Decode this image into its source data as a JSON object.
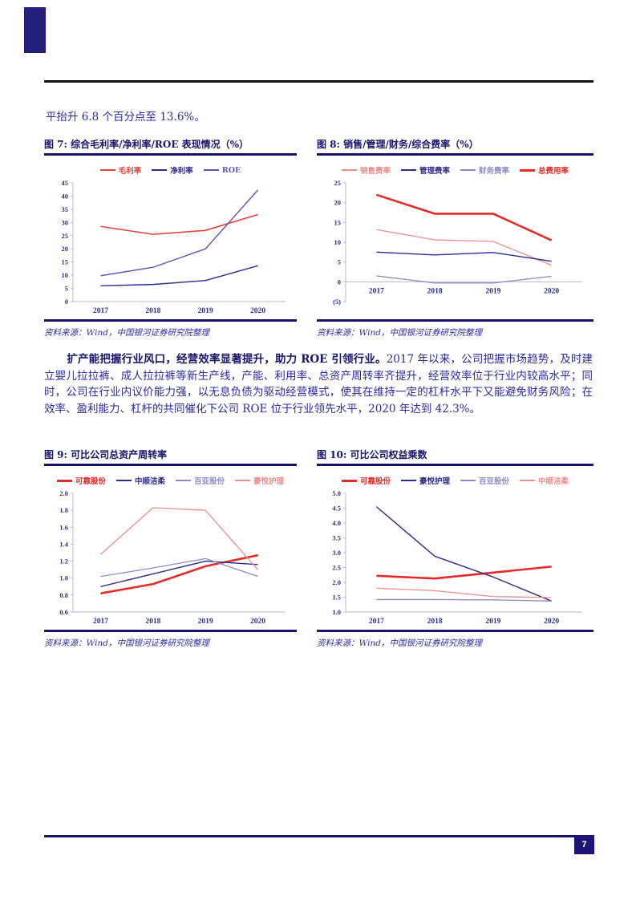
{
  "texts": {
    "intro": "平抬升 6.8 个百分点至 13.6%。",
    "para_bold": "扩产能把握行业风口，经营效率显著提升，助力 ROE 引领行业。",
    "para_rest": "2017 年以来，公司把握市场趋势，及时建立婴儿拉拉裤、成人拉拉裤等新生产线，产能、利用率、总资产周转率齐提升，经营效率位于行业内较高水平；同时，公司在行业内议价能力强，以无息负债为驱动经营模式，使其在维持一定的杠杆水平下又能避免财务风险；在效率、盈利能力、杠杆的共同催化下公司 ROE 位于行业领先水平，2020 年达到 42.3%。",
    "source": "资料来源：Wind，中国银河证券研究院整理",
    "page_number": "7"
  },
  "theme": {
    "navy": "#17126b",
    "body_blue": "#2c28a4",
    "bold_red": "#e52b28",
    "footer_box": "#1d1478"
  },
  "chart_data": [
    {
      "type": "line",
      "title": "图 7: 综合毛利率/净利率/ROE 表现情况（%）",
      "categories": [
        "2017",
        "2018",
        "2019",
        "2020"
      ],
      "ylim": [
        0,
        45
      ],
      "xaxis_at": 0,
      "yticks": [
        {
          "v": 0,
          "label": "0"
        },
        {
          "v": 5,
          "label": "5"
        },
        {
          "v": 10,
          "label": "10"
        },
        {
          "v": 15,
          "label": "15"
        },
        {
          "v": 20,
          "label": "20"
        },
        {
          "v": 25,
          "label": "25"
        },
        {
          "v": 30,
          "label": "30"
        },
        {
          "v": 35,
          "label": "35"
        },
        {
          "v": 40,
          "label": "40"
        },
        {
          "v": 45,
          "label": "45"
        }
      ],
      "series": [
        {
          "name": "毛利率",
          "color": "#e6403a",
          "width": 1.6,
          "values": [
            28.5,
            25.5,
            27.0,
            33.0
          ]
        },
        {
          "name": "净利率",
          "color": "#2e2b8f",
          "width": 1.4,
          "values": [
            6.0,
            6.5,
            8.0,
            13.6
          ]
        },
        {
          "name": "ROE",
          "color": "#5a55b5",
          "width": 1.4,
          "values": [
            9.8,
            13.0,
            20.0,
            42.3
          ]
        }
      ],
      "legend_position": "top",
      "grid": false
    },
    {
      "type": "line",
      "title": "图 8: 销售/管理/财务/综合费率（%）",
      "categories": [
        "2017",
        "2018",
        "2019",
        "2020"
      ],
      "ylim": [
        -5,
        25
      ],
      "xaxis_at": 0,
      "yticks": [
        {
          "v": -5,
          "label": "(5)"
        },
        {
          "v": 0,
          "label": "0"
        },
        {
          "v": 5,
          "label": "5"
        },
        {
          "v": 10,
          "label": "10"
        },
        {
          "v": 15,
          "label": "15"
        },
        {
          "v": 20,
          "label": "20"
        },
        {
          "v": 25,
          "label": "25"
        }
      ],
      "series": [
        {
          "name": "销售费率",
          "color": "#ef8c8c",
          "width": 1.3,
          "values": [
            13.2,
            10.6,
            10.2,
            4.2
          ]
        },
        {
          "name": "管理费率",
          "color": "#2e2b8f",
          "width": 1.4,
          "values": [
            7.5,
            6.8,
            7.4,
            5.2
          ]
        },
        {
          "name": "财务费率",
          "color": "#8d89c6",
          "width": 1.3,
          "values": [
            1.5,
            -0.3,
            -0.3,
            1.4
          ]
        },
        {
          "name": "总费用率",
          "color": "#e52b28",
          "width": 2.6,
          "values": [
            22.0,
            17.2,
            17.2,
            10.5
          ]
        }
      ],
      "legend_position": "top",
      "grid": false
    },
    {
      "type": "line",
      "title": "图 9: 可比公司总资产周转率",
      "categories": [
        "2017",
        "2018",
        "2019",
        "2020"
      ],
      "ylim": [
        0.6,
        2.0
      ],
      "xaxis_at": 0.6,
      "yticks": [
        {
          "v": 0.6,
          "label": "0.6"
        },
        {
          "v": 0.8,
          "label": "0.8"
        },
        {
          "v": 1.0,
          "label": "1.0"
        },
        {
          "v": 1.2,
          "label": "1.2"
        },
        {
          "v": 1.4,
          "label": "1.4"
        },
        {
          "v": 1.6,
          "label": "1.6"
        },
        {
          "v": 1.8,
          "label": "1.8"
        },
        {
          "v": 2.0,
          "label": "2.0"
        }
      ],
      "series": [
        {
          "name": "可靠股份",
          "color": "#e52b28",
          "width": 2.6,
          "values": [
            0.82,
            0.93,
            1.14,
            1.27
          ]
        },
        {
          "name": "中顺洁柔",
          "color": "#2e2b8f",
          "width": 1.4,
          "values": [
            0.9,
            1.05,
            1.2,
            1.16
          ]
        },
        {
          "name": "百亚股份",
          "color": "#8d89c6",
          "width": 1.3,
          "values": [
            1.02,
            1.12,
            1.23,
            1.02
          ]
        },
        {
          "name": "豪悦护理",
          "color": "#ef8c8c",
          "width": 1.3,
          "values": [
            1.28,
            1.83,
            1.8,
            1.1
          ]
        }
      ],
      "legend_position": "top",
      "grid": false
    },
    {
      "type": "line",
      "title": "图 10: 可比公司权益乘数",
      "categories": [
        "2017",
        "2018",
        "2019",
        "2020"
      ],
      "ylim": [
        1.0,
        5.0
      ],
      "xaxis_at": 1.0,
      "yticks": [
        {
          "v": 1.0,
          "label": "1.0"
        },
        {
          "v": 1.5,
          "label": "1.5"
        },
        {
          "v": 2.0,
          "label": "2.0"
        },
        {
          "v": 2.5,
          "label": "2.5"
        },
        {
          "v": 3.0,
          "label": "3.0"
        },
        {
          "v": 3.5,
          "label": "3.5"
        },
        {
          "v": 4.0,
          "label": "4.0"
        },
        {
          "v": 4.5,
          "label": "4.5"
        },
        {
          "v": 5.0,
          "label": "5.0"
        }
      ],
      "series": [
        {
          "name": "可靠股份",
          "color": "#e52b28",
          "width": 2.6,
          "values": [
            2.22,
            2.13,
            2.33,
            2.53
          ]
        },
        {
          "name": "豪悦护理",
          "color": "#2e2b8f",
          "width": 1.4,
          "values": [
            4.55,
            2.88,
            2.18,
            1.37
          ]
        },
        {
          "name": "百亚股份",
          "color": "#8d89c6",
          "width": 1.3,
          "values": [
            1.42,
            1.42,
            1.41,
            1.37
          ]
        },
        {
          "name": "中顺洁柔",
          "color": "#ef8c8c",
          "width": 1.3,
          "values": [
            1.8,
            1.72,
            1.52,
            1.49
          ]
        }
      ],
      "legend_position": "top",
      "grid": false
    }
  ]
}
